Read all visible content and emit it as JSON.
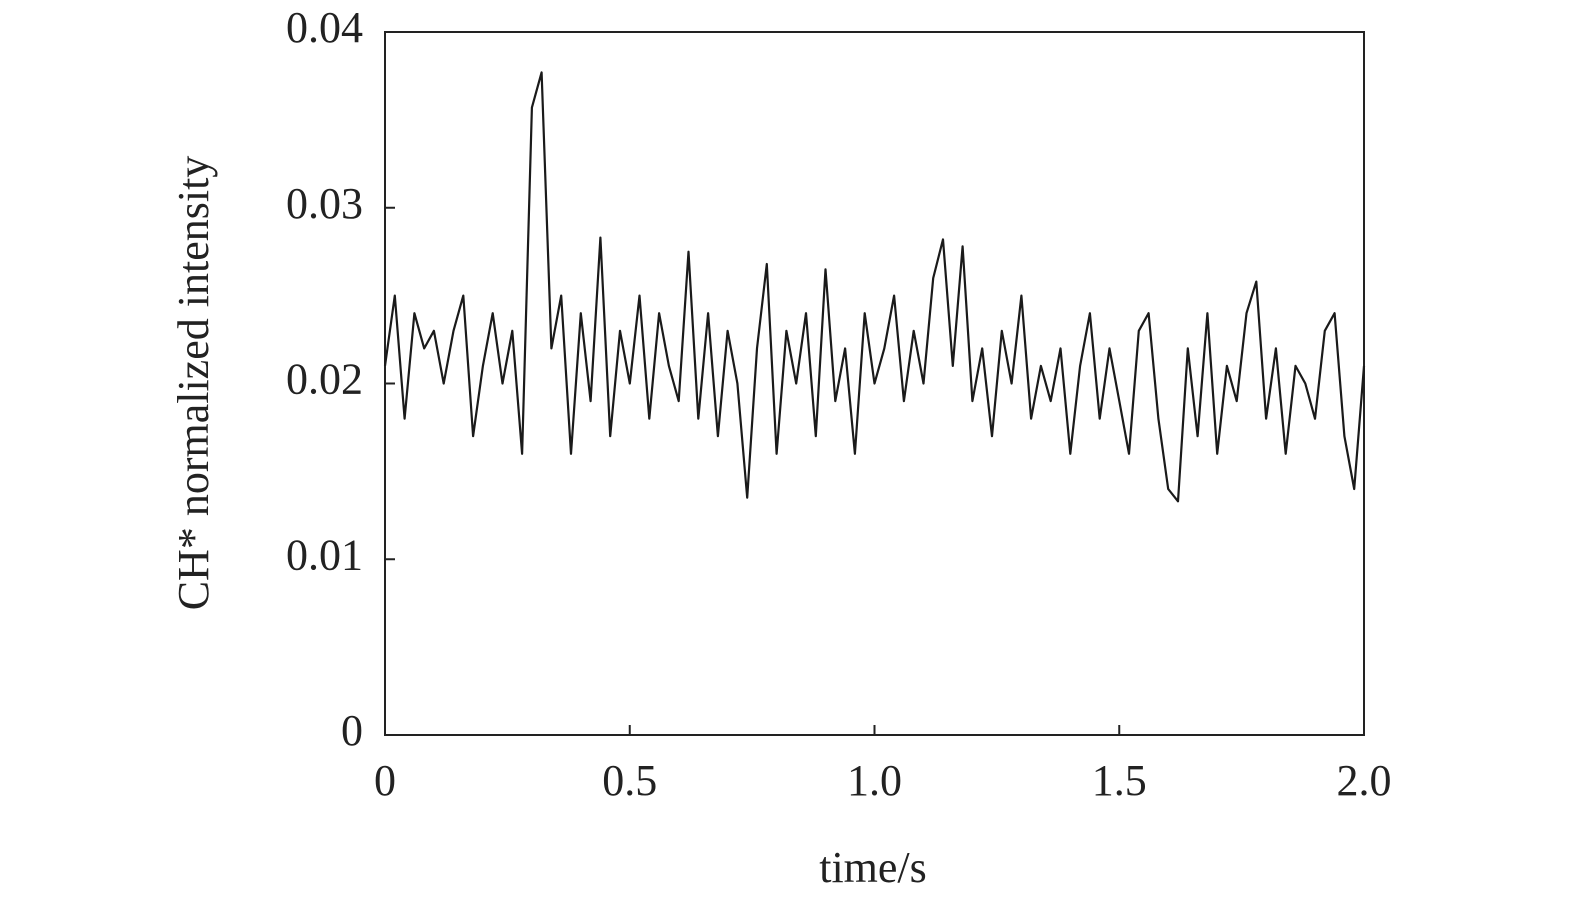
{
  "chart_data": {
    "type": "line",
    "xlabel": "time/s",
    "ylabel": "CH* normalized intensity",
    "x": [
      0,
      0.02,
      0.04,
      0.06,
      0.08,
      0.1,
      0.12,
      0.14,
      0.16,
      0.18,
      0.2,
      0.22,
      0.24,
      0.26,
      0.28,
      0.3,
      0.32,
      0.34,
      0.36,
      0.38,
      0.4,
      0.42,
      0.44,
      0.46,
      0.48,
      0.5,
      0.52,
      0.54,
      0.56,
      0.58,
      0.6,
      0.62,
      0.64,
      0.66,
      0.68,
      0.7,
      0.72,
      0.74,
      0.76,
      0.78,
      0.8,
      0.82,
      0.84,
      0.86,
      0.88,
      0.9,
      0.92,
      0.94,
      0.96,
      0.98,
      1,
      1.02,
      1.04,
      1.06,
      1.08,
      1.1,
      1.12,
      1.14,
      1.16,
      1.18,
      1.2,
      1.22,
      1.24,
      1.26,
      1.28,
      1.3,
      1.32,
      1.34,
      1.36,
      1.38,
      1.4,
      1.42,
      1.44,
      1.46,
      1.48,
      1.5,
      1.52,
      1.54,
      1.56,
      1.58,
      1.6,
      1.62,
      1.64,
      1.66,
      1.68,
      1.7,
      1.72,
      1.74,
      1.76,
      1.78,
      1.8,
      1.82,
      1.84,
      1.86,
      1.88,
      1.9,
      1.92,
      1.94,
      1.96,
      1.98,
      2
    ],
    "values": [
      0.021,
      0.025,
      0.018,
      0.024,
      0.022,
      0.023,
      0.02,
      0.023,
      0.025,
      0.017,
      0.021,
      0.024,
      0.02,
      0.023,
      0.016,
      0.0357,
      0.0377,
      0.022,
      0.025,
      0.016,
      0.024,
      0.019,
      0.0283,
      0.017,
      0.023,
      0.02,
      0.025,
      0.018,
      0.024,
      0.021,
      0.019,
      0.0275,
      0.018,
      0.024,
      0.017,
      0.023,
      0.02,
      0.0135,
      0.022,
      0.0268,
      0.016,
      0.023,
      0.02,
      0.024,
      0.017,
      0.0265,
      0.019,
      0.022,
      0.016,
      0.024,
      0.02,
      0.022,
      0.025,
      0.019,
      0.023,
      0.02,
      0.026,
      0.0282,
      0.021,
      0.0278,
      0.019,
      0.022,
      0.017,
      0.023,
      0.02,
      0.025,
      0.018,
      0.021,
      0.019,
      0.022,
      0.016,
      0.021,
      0.024,
      0.018,
      0.022,
      0.019,
      0.016,
      0.023,
      0.024,
      0.018,
      0.014,
      0.0133,
      0.022,
      0.017,
      0.024,
      0.016,
      0.021,
      0.019,
      0.024,
      0.0258,
      0.018,
      0.022,
      0.016,
      0.021,
      0.02,
      0.018,
      0.023,
      0.024,
      0.017,
      0.014,
      0.021
    ],
    "color": "#1a1a1a",
    "xlim": [
      0,
      2
    ],
    "xticks": [
      0,
      0.5,
      {
        "value": 1,
        "label": "1.0"
      },
      1.5,
      {
        "value": 2,
        "label": "2.0"
      }
    ],
    "ylim": [
      0,
      0.04
    ],
    "yticks": [
      0,
      0.01,
      0.02,
      0.03,
      0.04
    ]
  }
}
